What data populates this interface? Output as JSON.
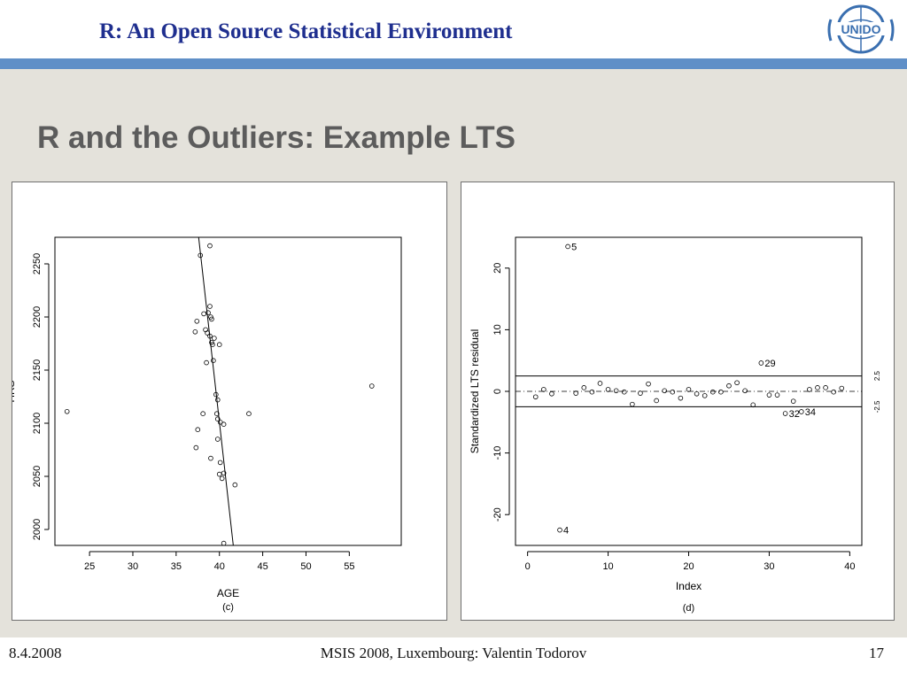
{
  "header": {
    "title": "R: An Open Source Statistical Environment",
    "logo_text": "UNIDO"
  },
  "slide": {
    "title": "R and the Outliers: Example LTS"
  },
  "footer": {
    "date": "8.4.2008",
    "center": "MSIS 2008, Luxembourg: Valentin Todorov",
    "page": "17"
  },
  "colors": {
    "header_title": "#1f2f8f",
    "header_bar": "#5f8fc7",
    "content_bg": "#e4e2db",
    "slide_title": "#5c5c5c"
  },
  "chart_data": [
    {
      "type": "scatter",
      "title": "",
      "xlabel": "AGE",
      "ylabel": "HRS",
      "caption": "(c)",
      "xlim": [
        21,
        61
      ],
      "ylim": [
        1985,
        2275
      ],
      "xticks": [
        "25",
        "30",
        "35",
        "40",
        "45",
        "50",
        "55"
      ],
      "yticks": [
        "2000",
        "2050",
        "2100",
        "2150",
        "2200",
        "2250"
      ],
      "points": [
        [
          38.9,
          2267
        ],
        [
          37.8,
          2258
        ],
        [
          38.9,
          2210
        ],
        [
          38.2,
          2203
        ],
        [
          38.7,
          2204
        ],
        [
          39.0,
          2200
        ],
        [
          39.1,
          2198
        ],
        [
          37.4,
          2196
        ],
        [
          37.2,
          2186
        ],
        [
          38.4,
          2188
        ],
        [
          38.6,
          2185
        ],
        [
          38.9,
          2182
        ],
        [
          39.4,
          2180
        ],
        [
          39.1,
          2176
        ],
        [
          39.2,
          2174
        ],
        [
          40.0,
          2174
        ],
        [
          39.3,
          2159
        ],
        [
          38.5,
          2157
        ],
        [
          39.6,
          2127
        ],
        [
          39.8,
          2122
        ],
        [
          38.1,
          2109
        ],
        [
          39.7,
          2109
        ],
        [
          39.8,
          2104
        ],
        [
          40.1,
          2101
        ],
        [
          40.5,
          2099
        ],
        [
          22.4,
          2111
        ],
        [
          43.4,
          2109
        ],
        [
          57.6,
          2135
        ],
        [
          37.5,
          2094
        ],
        [
          39.8,
          2085
        ],
        [
          37.3,
          2077
        ],
        [
          39.0,
          2067
        ],
        [
          40.1,
          2063
        ],
        [
          40.0,
          2052
        ],
        [
          40.5,
          2053
        ],
        [
          40.3,
          2048
        ],
        [
          41.8,
          2042
        ],
        [
          40.5,
          1987
        ]
      ],
      "fit_line": [
        [
          37.6,
          2275
        ],
        [
          41.6,
          1985
        ]
      ]
    },
    {
      "type": "scatter",
      "title": "",
      "xlabel": "Index",
      "ylabel": "Standardized LTS residual",
      "caption": "(d)",
      "xlim": [
        -1.5,
        41.5
      ],
      "ylim": [
        -25,
        25
      ],
      "xticks": [
        "0",
        "10",
        "20",
        "30",
        "40"
      ],
      "yticks": [
        "-20",
        "-10",
        "0",
        "10",
        "20"
      ],
      "hlines": {
        "cutoffs": [
          2.5,
          -2.5
        ],
        "zero": 0
      },
      "right_labels": [
        "2.5",
        "-2.5"
      ],
      "labeled_points": [
        {
          "label": "5",
          "x": 5,
          "y": 23.5
        },
        {
          "label": "29",
          "x": 29,
          "y": 4.6
        },
        {
          "label": "32",
          "x": 32,
          "y": -3.6
        },
        {
          "label": "34",
          "x": 34,
          "y": -3.3
        },
        {
          "label": "4",
          "x": 4,
          "y": -22.5
        }
      ],
      "points": [
        [
          1,
          -0.9
        ],
        [
          2,
          0.3
        ],
        [
          3,
          -0.4
        ],
        [
          4,
          -22.5
        ],
        [
          5,
          23.5
        ],
        [
          6,
          -0.3
        ],
        [
          7,
          0.6
        ],
        [
          8,
          -0.1
        ],
        [
          9,
          1.3
        ],
        [
          10,
          0.3
        ],
        [
          11,
          0.1
        ],
        [
          12,
          -0.1
        ],
        [
          13,
          -2.1
        ],
        [
          14,
          -0.3
        ],
        [
          15,
          1.2
        ],
        [
          16,
          -1.5
        ],
        [
          17,
          0.1
        ],
        [
          18,
          -0.1
        ],
        [
          19,
          -1.1
        ],
        [
          20,
          0.3
        ],
        [
          21,
          -0.4
        ],
        [
          22,
          -0.7
        ],
        [
          23,
          -0.1
        ],
        [
          24,
          -0.1
        ],
        [
          25,
          0.9
        ],
        [
          26,
          1.4
        ],
        [
          27,
          0.1
        ],
        [
          28,
          -2.2
        ],
        [
          29,
          4.6
        ],
        [
          30,
          -0.6
        ],
        [
          31,
          -0.6
        ],
        [
          32,
          -3.6
        ],
        [
          33,
          -1.6
        ],
        [
          34,
          -3.3
        ],
        [
          35,
          0.3
        ],
        [
          36,
          0.6
        ],
        [
          37,
          0.6
        ],
        [
          38,
          -0.1
        ],
        [
          39,
          0.5
        ]
      ]
    }
  ]
}
